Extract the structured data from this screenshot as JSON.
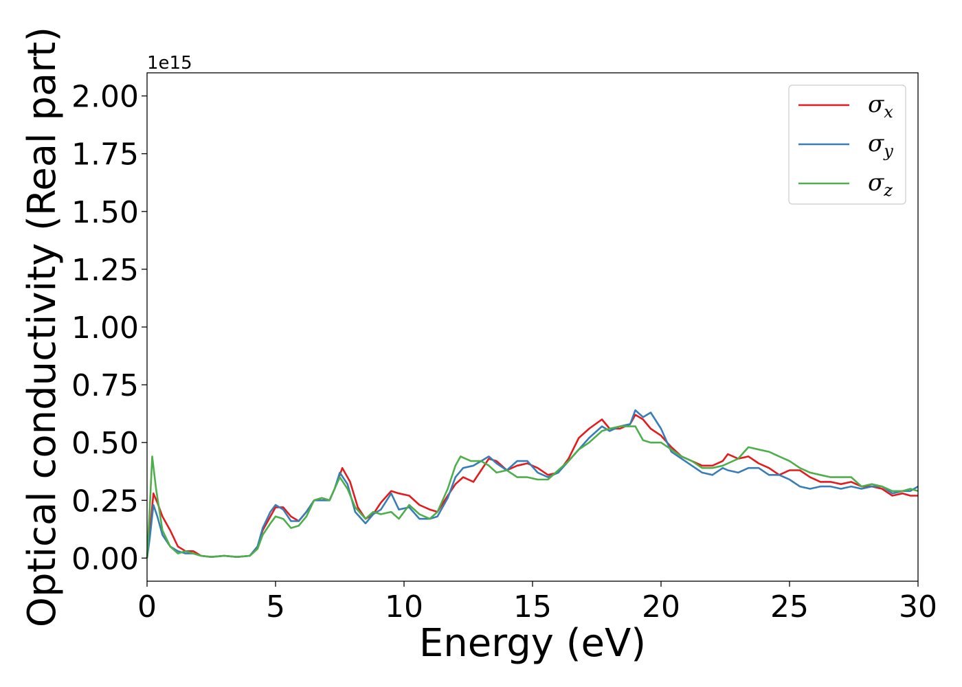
{
  "chart_data": {
    "type": "line",
    "xlabel": "Energy (eV)",
    "ylabel": "Optical conductivity (Real part)",
    "y_offset_label": "1e15",
    "xlim": [
      0,
      30
    ],
    "ylim": [
      -0.1,
      2.1
    ],
    "x_ticks": [
      0,
      5,
      10,
      15,
      20,
      25,
      30
    ],
    "y_ticks": [
      0.0,
      0.25,
      0.5,
      0.75,
      1.0,
      1.25,
      1.5,
      1.75,
      2.0
    ],
    "x_tick_labels": [
      "0",
      "5",
      "10",
      "15",
      "20",
      "25",
      "30"
    ],
    "y_tick_labels": [
      "0.00",
      "0.25",
      "0.50",
      "0.75",
      "1.00",
      "1.25",
      "1.50",
      "1.75",
      "2.00"
    ],
    "grid": false,
    "legend_position": "top-right",
    "series": [
      {
        "name": "σx",
        "symbol": "σ",
        "subscript": "x",
        "color": "#e41a1c",
        "points": [
          [
            0,
            0.0
          ],
          [
            0.1,
            0.1
          ],
          [
            0.25,
            0.28
          ],
          [
            0.4,
            0.24
          ],
          [
            0.6,
            0.18
          ],
          [
            0.9,
            0.12
          ],
          [
            1.2,
            0.05
          ],
          [
            1.5,
            0.03
          ],
          [
            1.8,
            0.03
          ],
          [
            2.1,
            0.01
          ],
          [
            2.5,
            0.005
          ],
          [
            3.0,
            0.01
          ],
          [
            3.5,
            0.005
          ],
          [
            4.0,
            0.01
          ],
          [
            4.3,
            0.05
          ],
          [
            4.5,
            0.12
          ],
          [
            4.8,
            0.18
          ],
          [
            5.0,
            0.22
          ],
          [
            5.3,
            0.22
          ],
          [
            5.6,
            0.18
          ],
          [
            5.9,
            0.16
          ],
          [
            6.2,
            0.2
          ],
          [
            6.5,
            0.25
          ],
          [
            6.8,
            0.26
          ],
          [
            7.1,
            0.25
          ],
          [
            7.3,
            0.3
          ],
          [
            7.6,
            0.39
          ],
          [
            7.9,
            0.33
          ],
          [
            8.2,
            0.22
          ],
          [
            8.5,
            0.17
          ],
          [
            8.8,
            0.19
          ],
          [
            9.1,
            0.24
          ],
          [
            9.5,
            0.29
          ],
          [
            9.8,
            0.28
          ],
          [
            10.2,
            0.27
          ],
          [
            10.6,
            0.23
          ],
          [
            11.0,
            0.21
          ],
          [
            11.3,
            0.2
          ],
          [
            11.7,
            0.27
          ],
          [
            12.0,
            0.32
          ],
          [
            12.3,
            0.35
          ],
          [
            12.7,
            0.33
          ],
          [
            13.0,
            0.38
          ],
          [
            13.3,
            0.43
          ],
          [
            13.6,
            0.42
          ],
          [
            14.0,
            0.38
          ],
          [
            14.4,
            0.4
          ],
          [
            14.8,
            0.41
          ],
          [
            15.2,
            0.39
          ],
          [
            15.6,
            0.36
          ],
          [
            16.0,
            0.37
          ],
          [
            16.4,
            0.43
          ],
          [
            16.8,
            0.52
          ],
          [
            17.2,
            0.56
          ],
          [
            17.7,
            0.6
          ],
          [
            18.0,
            0.56
          ],
          [
            18.4,
            0.56
          ],
          [
            18.8,
            0.58
          ],
          [
            19.0,
            0.62
          ],
          [
            19.3,
            0.6
          ],
          [
            19.6,
            0.56
          ],
          [
            20.0,
            0.53
          ],
          [
            20.4,
            0.48
          ],
          [
            20.8,
            0.44
          ],
          [
            21.2,
            0.42
          ],
          [
            21.6,
            0.4
          ],
          [
            22.0,
            0.4
          ],
          [
            22.4,
            0.42
          ],
          [
            22.6,
            0.45
          ],
          [
            23.0,
            0.43
          ],
          [
            23.4,
            0.44
          ],
          [
            23.8,
            0.41
          ],
          [
            24.2,
            0.39
          ],
          [
            24.6,
            0.36
          ],
          [
            25.0,
            0.38
          ],
          [
            25.4,
            0.38
          ],
          [
            25.8,
            0.35
          ],
          [
            26.2,
            0.33
          ],
          [
            26.6,
            0.33
          ],
          [
            27.0,
            0.32
          ],
          [
            27.4,
            0.33
          ],
          [
            27.8,
            0.31
          ],
          [
            28.2,
            0.31
          ],
          [
            28.6,
            0.3
          ],
          [
            29.0,
            0.27
          ],
          [
            29.4,
            0.28
          ],
          [
            29.7,
            0.27
          ],
          [
            30.0,
            0.27
          ]
        ]
      },
      {
        "name": "σy",
        "symbol": "σ",
        "subscript": "y",
        "color": "#377eb8",
        "points": [
          [
            0,
            0.0
          ],
          [
            0.1,
            0.08
          ],
          [
            0.25,
            0.23
          ],
          [
            0.4,
            0.18
          ],
          [
            0.6,
            0.1
          ],
          [
            0.9,
            0.05
          ],
          [
            1.2,
            0.03
          ],
          [
            1.5,
            0.02
          ],
          [
            1.8,
            0.02
          ],
          [
            2.1,
            0.01
          ],
          [
            2.5,
            0.005
          ],
          [
            3.0,
            0.01
          ],
          [
            3.5,
            0.005
          ],
          [
            4.0,
            0.01
          ],
          [
            4.3,
            0.05
          ],
          [
            4.5,
            0.13
          ],
          [
            4.8,
            0.2
          ],
          [
            5.0,
            0.23
          ],
          [
            5.3,
            0.21
          ],
          [
            5.6,
            0.16
          ],
          [
            5.9,
            0.16
          ],
          [
            6.2,
            0.2
          ],
          [
            6.5,
            0.25
          ],
          [
            6.8,
            0.25
          ],
          [
            7.1,
            0.25
          ],
          [
            7.3,
            0.3
          ],
          [
            7.5,
            0.37
          ],
          [
            7.8,
            0.32
          ],
          [
            8.1,
            0.2
          ],
          [
            8.5,
            0.15
          ],
          [
            8.8,
            0.19
          ],
          [
            9.1,
            0.21
          ],
          [
            9.5,
            0.28
          ],
          [
            9.8,
            0.21
          ],
          [
            10.2,
            0.22
          ],
          [
            10.6,
            0.17
          ],
          [
            11.0,
            0.17
          ],
          [
            11.3,
            0.18
          ],
          [
            11.7,
            0.26
          ],
          [
            12.0,
            0.35
          ],
          [
            12.3,
            0.39
          ],
          [
            12.7,
            0.4
          ],
          [
            13.0,
            0.42
          ],
          [
            13.3,
            0.44
          ],
          [
            13.6,
            0.41
          ],
          [
            14.0,
            0.38
          ],
          [
            14.4,
            0.42
          ],
          [
            14.8,
            0.42
          ],
          [
            15.2,
            0.37
          ],
          [
            15.6,
            0.35
          ],
          [
            16.0,
            0.37
          ],
          [
            16.4,
            0.42
          ],
          [
            16.8,
            0.47
          ],
          [
            17.2,
            0.52
          ],
          [
            17.7,
            0.57
          ],
          [
            18.0,
            0.55
          ],
          [
            18.4,
            0.57
          ],
          [
            18.8,
            0.58
          ],
          [
            19.0,
            0.64
          ],
          [
            19.3,
            0.61
          ],
          [
            19.6,
            0.63
          ],
          [
            20.0,
            0.56
          ],
          [
            20.4,
            0.46
          ],
          [
            20.8,
            0.43
          ],
          [
            21.2,
            0.4
          ],
          [
            21.6,
            0.37
          ],
          [
            22.0,
            0.36
          ],
          [
            22.4,
            0.39
          ],
          [
            22.6,
            0.38
          ],
          [
            23.0,
            0.37
          ],
          [
            23.4,
            0.39
          ],
          [
            23.8,
            0.39
          ],
          [
            24.2,
            0.36
          ],
          [
            24.6,
            0.36
          ],
          [
            25.0,
            0.34
          ],
          [
            25.4,
            0.31
          ],
          [
            25.8,
            0.3
          ],
          [
            26.2,
            0.31
          ],
          [
            26.6,
            0.31
          ],
          [
            27.0,
            0.3
          ],
          [
            27.4,
            0.31
          ],
          [
            27.8,
            0.3
          ],
          [
            28.2,
            0.31
          ],
          [
            28.6,
            0.31
          ],
          [
            29.0,
            0.28
          ],
          [
            29.4,
            0.29
          ],
          [
            29.7,
            0.29
          ],
          [
            30.0,
            0.31
          ]
        ]
      },
      {
        "name": "σz",
        "symbol": "σ",
        "subscript": "z",
        "color": "#4daf4a",
        "points": [
          [
            0,
            0.0
          ],
          [
            0.1,
            0.2
          ],
          [
            0.2,
            0.44
          ],
          [
            0.35,
            0.3
          ],
          [
            0.6,
            0.12
          ],
          [
            0.9,
            0.05
          ],
          [
            1.2,
            0.02
          ],
          [
            1.5,
            0.03
          ],
          [
            1.8,
            0.02
          ],
          [
            2.1,
            0.01
          ],
          [
            2.5,
            0.005
          ],
          [
            3.0,
            0.01
          ],
          [
            3.5,
            0.005
          ],
          [
            4.0,
            0.01
          ],
          [
            4.3,
            0.04
          ],
          [
            4.5,
            0.1
          ],
          [
            4.8,
            0.15
          ],
          [
            5.0,
            0.18
          ],
          [
            5.3,
            0.17
          ],
          [
            5.6,
            0.13
          ],
          [
            5.9,
            0.14
          ],
          [
            6.2,
            0.18
          ],
          [
            6.5,
            0.25
          ],
          [
            6.8,
            0.26
          ],
          [
            7.1,
            0.25
          ],
          [
            7.3,
            0.3
          ],
          [
            7.5,
            0.35
          ],
          [
            7.8,
            0.3
          ],
          [
            8.1,
            0.22
          ],
          [
            8.5,
            0.17
          ],
          [
            8.8,
            0.2
          ],
          [
            9.1,
            0.19
          ],
          [
            9.5,
            0.2
          ],
          [
            9.8,
            0.17
          ],
          [
            10.2,
            0.23
          ],
          [
            10.6,
            0.19
          ],
          [
            11.0,
            0.17
          ],
          [
            11.3,
            0.2
          ],
          [
            11.7,
            0.3
          ],
          [
            12.0,
            0.4
          ],
          [
            12.2,
            0.44
          ],
          [
            12.6,
            0.42
          ],
          [
            13.0,
            0.42
          ],
          [
            13.3,
            0.4
          ],
          [
            13.6,
            0.37
          ],
          [
            14.0,
            0.38
          ],
          [
            14.4,
            0.35
          ],
          [
            14.8,
            0.35
          ],
          [
            15.2,
            0.34
          ],
          [
            15.6,
            0.34
          ],
          [
            16.0,
            0.38
          ],
          [
            16.4,
            0.42
          ],
          [
            16.8,
            0.47
          ],
          [
            17.2,
            0.5
          ],
          [
            17.7,
            0.55
          ],
          [
            18.0,
            0.56
          ],
          [
            18.4,
            0.57
          ],
          [
            18.8,
            0.57
          ],
          [
            19.0,
            0.57
          ],
          [
            19.3,
            0.51
          ],
          [
            19.6,
            0.5
          ],
          [
            20.0,
            0.5
          ],
          [
            20.4,
            0.47
          ],
          [
            20.8,
            0.44
          ],
          [
            21.2,
            0.42
          ],
          [
            21.6,
            0.39
          ],
          [
            22.0,
            0.39
          ],
          [
            22.4,
            0.4
          ],
          [
            22.6,
            0.41
          ],
          [
            23.0,
            0.43
          ],
          [
            23.4,
            0.48
          ],
          [
            23.8,
            0.47
          ],
          [
            24.2,
            0.46
          ],
          [
            24.6,
            0.44
          ],
          [
            25.0,
            0.42
          ],
          [
            25.4,
            0.39
          ],
          [
            25.8,
            0.37
          ],
          [
            26.2,
            0.36
          ],
          [
            26.6,
            0.35
          ],
          [
            27.0,
            0.35
          ],
          [
            27.4,
            0.35
          ],
          [
            27.8,
            0.31
          ],
          [
            28.2,
            0.32
          ],
          [
            28.6,
            0.31
          ],
          [
            29.0,
            0.29
          ],
          [
            29.4,
            0.29
          ],
          [
            29.7,
            0.3
          ],
          [
            30.0,
            0.29
          ]
        ]
      }
    ]
  }
}
